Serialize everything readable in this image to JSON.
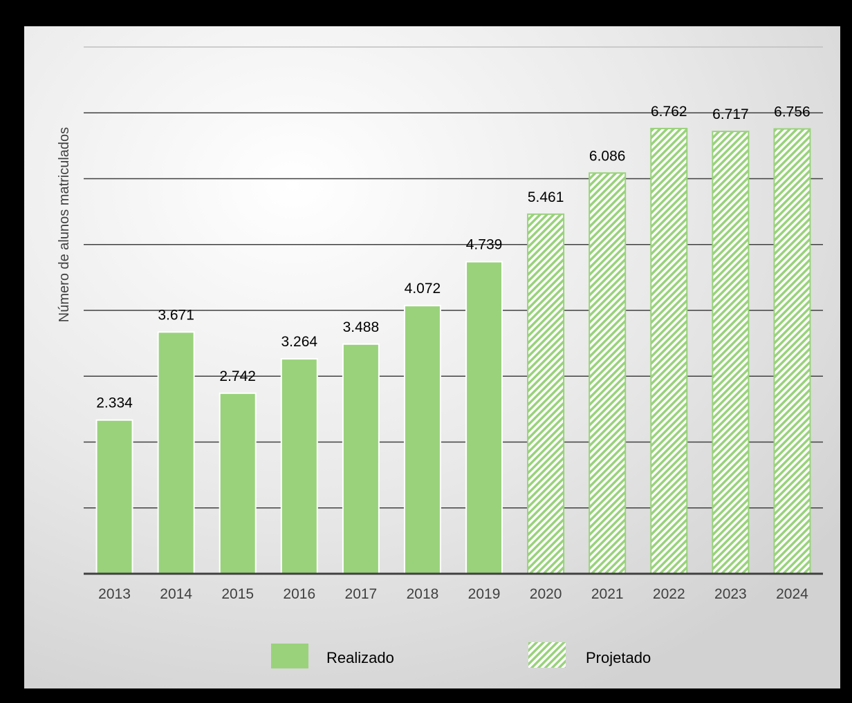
{
  "chart_data": {
    "type": "bar",
    "ylabel": "Número de alunos matriculados",
    "xlabel": "",
    "ylim": [
      0,
      8000
    ],
    "y_gridlines": [
      1000,
      2000,
      3000,
      4000,
      5000,
      6000,
      7000,
      8000
    ],
    "categories": [
      "2013",
      "2014",
      "2015",
      "2016",
      "2017",
      "2018",
      "2019",
      "2020",
      "2021",
      "2022",
      "2023",
      "2024"
    ],
    "values": [
      2334,
      3671,
      2742,
      3264,
      3488,
      4072,
      4739,
      5461,
      6086,
      6762,
      6717,
      6756
    ],
    "value_labels": [
      "2.334",
      "3.671",
      "2.742",
      "3.264",
      "3.488",
      "4.072",
      "4.739",
      "5.461",
      "6.086",
      "6.762",
      "6.717",
      "6.756"
    ],
    "bar_kind": [
      "Realizado",
      "Realizado",
      "Realizado",
      "Realizado",
      "Realizado",
      "Realizado",
      "Realizado",
      "Projetado",
      "Projetado",
      "Projetado",
      "Projetado",
      "Projetado"
    ],
    "legend": [
      {
        "name": "Realizado",
        "style": "solid"
      },
      {
        "name": "Projetado",
        "style": "hatched"
      }
    ],
    "legend_position": "bottom-center",
    "grid": true,
    "colors": {
      "bar_fill": "#99D27B",
      "hatch_line": "#99D27B",
      "hatch_bg": "#FFFFFF",
      "axis": "#404040",
      "grid": "#404040",
      "background": "#F2F2F2",
      "text": "#000000",
      "frame": "#000000"
    }
  }
}
